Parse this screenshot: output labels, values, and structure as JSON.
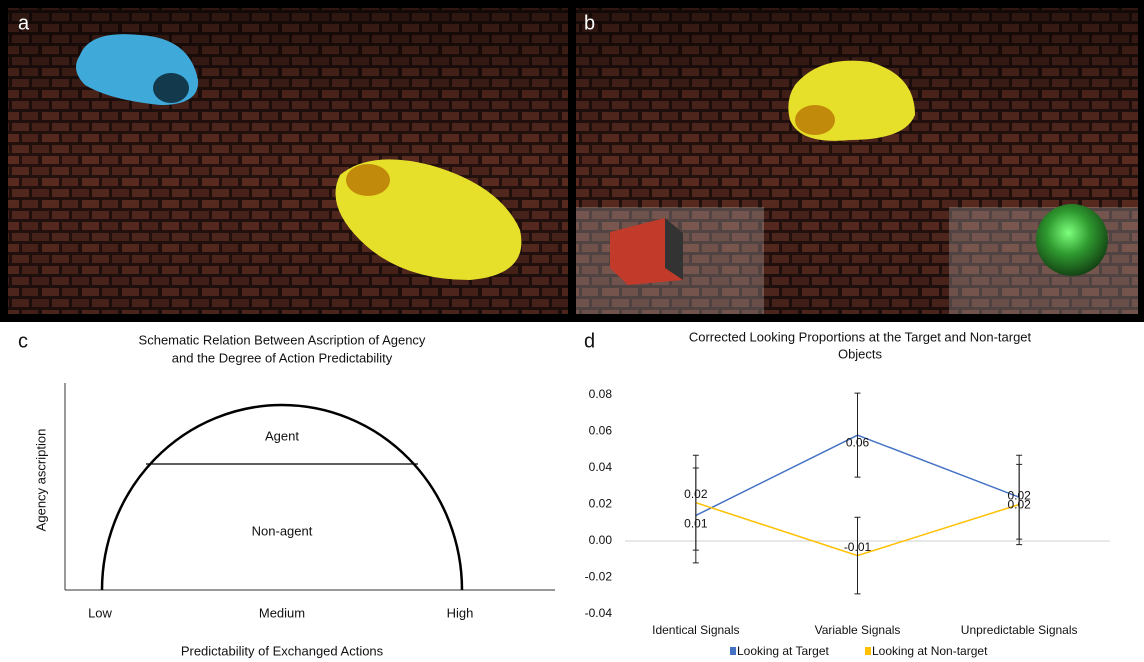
{
  "panel_labels": [
    "a",
    "b",
    "c",
    "d"
  ],
  "schematic": {
    "title": [
      "Schematic Relation Between Ascription of Agency",
      "and the Degree of Action Predictability"
    ],
    "y_label": "Agency ascription",
    "x_label": "Predictability of Exchanged Actions",
    "x_categories": [
      "Low",
      "Medium",
      "High"
    ],
    "regions": [
      "Agent",
      "Non-agent"
    ]
  },
  "chart_data": {
    "type": "line",
    "title": [
      "Corrected Looking Proportions at the Target and Non-target",
      "Objects"
    ],
    "categories": [
      "Identical Signals",
      "Variable Signals",
      "Unpredictable Signals"
    ],
    "series": [
      {
        "name": "Looking at Target",
        "color": "#4472c4",
        "values": [
          0.014,
          0.058,
          0.024
        ],
        "value_labels": [
          "0.01",
          "0.06",
          "0.02"
        ],
        "errors": [
          0.026,
          0.023,
          0.023
        ]
      },
      {
        "name": "Looking at Non-target",
        "color": "#ffc000",
        "values": [
          0.021,
          -0.008,
          0.02
        ],
        "value_labels": [
          "0.02",
          "-0.01",
          "0.02"
        ],
        "errors": [
          0.026,
          0.021,
          0.022
        ]
      }
    ],
    "ylim": [
      -0.04,
      0.08
    ],
    "yticks": [
      -0.04,
      -0.02,
      {
        "value": 0,
        "label": "0.00"
      },
      0.02,
      0.04,
      0.06,
      0.08
    ],
    "legend": "bottom"
  }
}
